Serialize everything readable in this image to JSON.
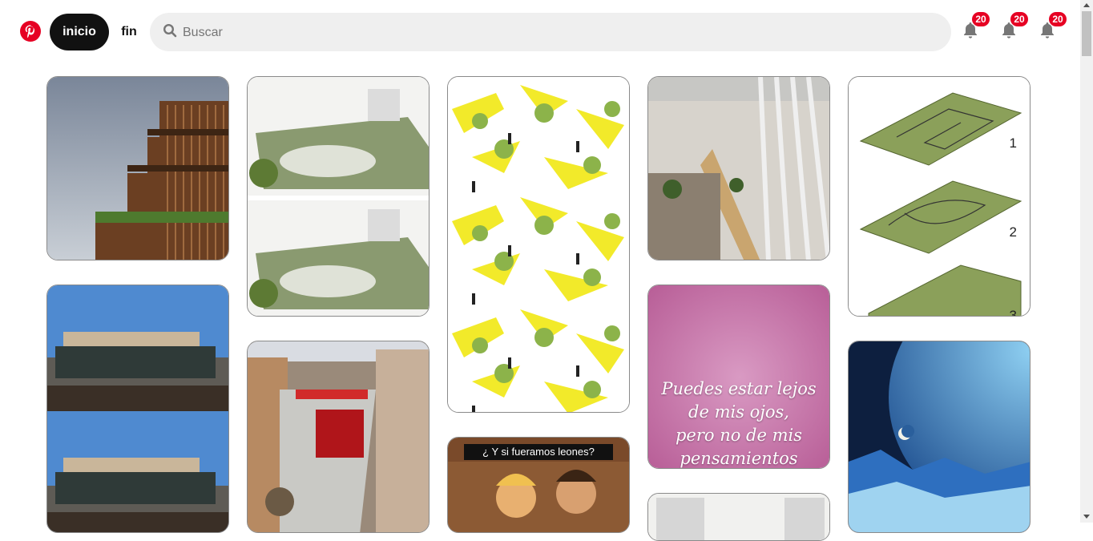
{
  "colors": {
    "brand": "#e60023",
    "active_nav_bg": "#111111",
    "search_bg": "#efefef"
  },
  "header": {
    "logo_icon": "pinterest-logo",
    "nav": {
      "home_label": "inicio",
      "end_label": "fin"
    },
    "search": {
      "placeholder": "Buscar",
      "value": "",
      "icon": "search-icon"
    },
    "notifications": [
      {
        "icon": "bell-icon",
        "count": "20"
      },
      {
        "icon": "bell-icon",
        "count": "20"
      },
      {
        "icon": "bell-icon",
        "count": "20"
      }
    ]
  },
  "pins": {
    "quote_lines": [
      "Puedes estar lejos",
      "de mis ojos,",
      "pero no de mis",
      "pensamientos"
    ],
    "meme_title": "¿ Y si fueramos leones?",
    "diagram_numbers": [
      "1",
      "2",
      "3"
    ]
  }
}
